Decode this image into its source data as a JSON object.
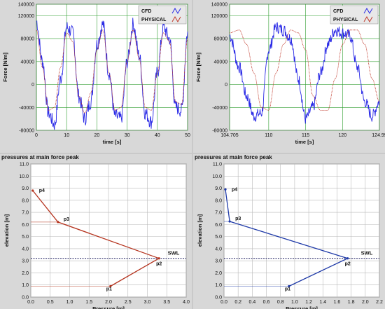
{
  "colors": {
    "cfd": "#2a2ae6",
    "physical": "#c0392b",
    "plot_bg": "#ffffff",
    "grid": "#2e9c2e",
    "frame": "#c9c9c9"
  },
  "chart_data": [
    {
      "type": "line",
      "title": "",
      "xlabel": "time [s]",
      "ylabel": "Force [N/m]",
      "xlim": [
        0,
        50
      ],
      "ylim": [
        -80000,
        140000
      ],
      "xticks": [
        "0",
        "10",
        "20",
        "30",
        "40",
        "50"
      ],
      "yticks": [
        "-80000",
        "-40000",
        "0",
        "40000",
        "80000",
        "120000",
        "140000"
      ],
      "grid": true,
      "legend": "top-right",
      "series": [
        {
          "name": "CFD",
          "description": "noisy oscillation, period ~7.8 s, peaks ~100000-115000, troughs ~-55000 to -75000",
          "x": [
            0,
            2,
            4,
            6,
            8,
            10,
            12,
            14,
            16,
            18,
            20,
            22,
            24,
            26,
            28,
            30,
            32,
            34,
            36,
            38,
            40,
            42,
            44,
            46,
            48,
            50
          ],
          "y": [
            110000,
            40000,
            -50000,
            -70000,
            10000,
            100000,
            90000,
            -20000,
            -60000,
            -30000,
            70000,
            105000,
            20000,
            -55000,
            -60000,
            40000,
            105000,
            50000,
            -50000,
            -65000,
            20000,
            100000,
            80000,
            -40000,
            -45000,
            90000
          ]
        },
        {
          "name": "PHYSICAL",
          "description": "smoother oscillation, peaks ~95000, troughs ~-50000",
          "x": [
            0,
            2,
            4,
            6,
            8,
            10,
            12,
            14,
            16,
            18,
            20,
            22,
            24,
            26,
            28,
            30,
            32,
            34,
            36,
            38,
            40,
            42,
            44,
            46,
            48,
            50
          ],
          "y": [
            95000,
            30000,
            -45000,
            -40000,
            30000,
            90000,
            75000,
            -20000,
            -50000,
            -15000,
            60000,
            95000,
            20000,
            -45000,
            -40000,
            40000,
            95000,
            45000,
            -40000,
            -45000,
            20000,
            90000,
            75000,
            -30000,
            -35000,
            80000
          ]
        }
      ]
    },
    {
      "type": "line",
      "title": "",
      "xlabel": "time [s]",
      "ylabel": "Force [N/m]",
      "xlim": [
        104.705,
        124.99
      ],
      "ylim": [
        -80000,
        140000
      ],
      "xticks": [
        "104.705",
        "110",
        "115",
        "120",
        "124.99"
      ],
      "yticks": [
        "-80000",
        "-40000",
        "0",
        "40000",
        "80000",
        "120000",
        "140000"
      ],
      "grid": true,
      "legend": "top-right",
      "series": [
        {
          "name": "CFD",
          "x": [
            104.705,
            106,
            107,
            108,
            109,
            110,
            111,
            112,
            113,
            114,
            115,
            116,
            117,
            118,
            119,
            120,
            121,
            122,
            123,
            124,
            124.99
          ],
          "y": [
            85000,
            30000,
            -20000,
            -55000,
            -50000,
            60000,
            100000,
            95000,
            80000,
            10000,
            -60000,
            -40000,
            20000,
            70000,
            95000,
            90000,
            85000,
            30000,
            -30000,
            -55000,
            -30000
          ]
        },
        {
          "name": "PHYSICAL",
          "x": [
            104.705,
            106,
            107,
            108,
            109,
            110,
            111,
            112,
            113,
            114,
            115,
            116,
            117,
            118,
            119,
            120,
            121,
            122,
            123,
            124,
            124.99
          ],
          "y": [
            90000,
            95000,
            70000,
            20000,
            -40000,
            -45000,
            20000,
            70000,
            95000,
            90000,
            60000,
            -20000,
            -45000,
            -45000,
            10000,
            70000,
            95000,
            95000,
            70000,
            10000,
            -30000
          ]
        }
      ]
    },
    {
      "type": "line",
      "title": "pressures at main force peak",
      "xlabel": "Pressure [m]",
      "ylabel": "elevation [m]",
      "xlim": [
        0,
        4
      ],
      "ylim": [
        0,
        11
      ],
      "xticks": [
        "0.0",
        "0.5",
        "1.0",
        "1.5",
        "2.0",
        "2.5",
        "3.0",
        "3.5",
        "4.0"
      ],
      "yticks": [
        "0.0",
        "1.0",
        "2.0",
        "3.0",
        "4.0",
        "5.0",
        "6.0",
        "7.0",
        "8.0",
        "9.0",
        "10.0",
        "11.0"
      ],
      "grid": true,
      "swl_label": "SWL",
      "swl": 3.2,
      "series": [
        {
          "name": "",
          "x": [
            0.05,
            0.7,
            3.3,
            2.05,
            0
          ],
          "y": [
            8.8,
            6.2,
            3.2,
            0.9,
            0.9
          ]
        }
      ],
      "points": [
        {
          "label": "p4",
          "x": 0.05,
          "y": 8.8
        },
        {
          "label": "p3",
          "x": 0.7,
          "y": 6.2
        },
        {
          "label": "p2",
          "x": 3.3,
          "y": 3.2
        },
        {
          "label": "p1",
          "x": 2.05,
          "y": 0.9
        }
      ]
    },
    {
      "type": "line",
      "title": "pressures at main force peak",
      "xlabel": "Pressure [m]",
      "ylabel": "elevation [m]",
      "xlim": [
        0,
        2.2
      ],
      "ylim": [
        0,
        11
      ],
      "xticks": [
        "0.0",
        "0.2",
        "0.4",
        "0.6",
        "0.8",
        "1.0",
        "1.2",
        "1.4",
        "1.6",
        "1.8",
        "2.0",
        "2.2"
      ],
      "yticks": [
        "0.0",
        "1.0",
        "2.0",
        "3.0",
        "4.0",
        "5.0",
        "6.0",
        "7.0",
        "8.0",
        "9.0",
        "10.0",
        "11.0"
      ],
      "grid": true,
      "swl_label": "SWL",
      "swl": 3.2,
      "series": [
        {
          "name": "",
          "x": [
            0.02,
            0.08,
            1.75,
            0.92,
            0
          ],
          "y": [
            8.9,
            6.25,
            3.2,
            0.9,
            0.9
          ]
        }
      ],
      "points": [
        {
          "label": "p4",
          "x": 0.02,
          "y": 8.9
        },
        {
          "label": "p3",
          "x": 0.08,
          "y": 6.25
        },
        {
          "label": "p2",
          "x": 1.75,
          "y": 3.2
        },
        {
          "label": "p1",
          "x": 0.92,
          "y": 0.9
        }
      ]
    }
  ]
}
